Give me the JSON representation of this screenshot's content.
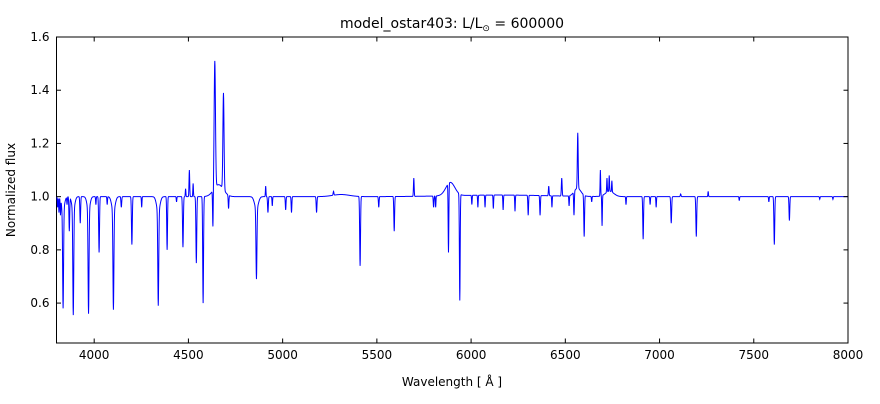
{
  "figure": {
    "title_prefix": "model_ostar403: L/L",
    "title_sub": "⊙",
    "title_suffix": " = 600000"
  },
  "chart_data": {
    "type": "line",
    "title": "model_ostar403: L/L⊙ = 600000",
    "xlabel": "Wavelength [ Å ]",
    "ylabel": "Normalized flux",
    "xlim": [
      3800,
      8000
    ],
    "ylim": [
      0.45,
      1.6
    ],
    "xticks": [
      "4000",
      "4500",
      "5000",
      "5500",
      "6000",
      "6500",
      "7000",
      "7500",
      "8000"
    ],
    "yticks": [
      "0.6",
      "0.8",
      "1.0",
      "1.2",
      "1.4",
      "1.6"
    ],
    "grid": false,
    "legend": "none",
    "line_color": "#0000ff",
    "frame_color": "#000000",
    "background": "#ffffff",
    "continuum_flux": 1.0,
    "features": [
      {
        "wl": 3806,
        "flux": 0.96,
        "sigma": 1.5
      },
      {
        "wl": 3813,
        "flux": 0.94,
        "sigma": 1.5
      },
      {
        "wl": 3821,
        "flux": 0.93,
        "sigma": 1.5
      },
      {
        "wl": 3828,
        "flux": 0.96,
        "sigma": 1.5
      },
      {
        "wl": 3835,
        "flux": 0.58,
        "sigma": 2.5
      },
      {
        "wl": 3856,
        "flux": 0.97,
        "sigma": 1.5
      },
      {
        "wl": 3868,
        "flux": 0.87,
        "sigma": 2.0
      },
      {
        "wl": 3889,
        "flux": 0.555,
        "sigma": 2.5
      },
      {
        "wl": 3926,
        "flux": 0.9,
        "sigma": 2.0
      },
      {
        "wl": 3970,
        "flux": 0.56,
        "sigma": 2.5
      },
      {
        "wl": 4009,
        "flux": 0.97,
        "sigma": 1.5
      },
      {
        "wl": 4026,
        "flux": 0.79,
        "sigma": 2.2
      },
      {
        "wl": 4069,
        "flux": 0.97,
        "sigma": 1.5
      },
      {
        "wl": 4102,
        "flux": 0.575,
        "sigma": 2.5
      },
      {
        "wl": 4144,
        "flux": 0.96,
        "sigma": 2.0
      },
      {
        "wl": 4200,
        "flux": 0.82,
        "sigma": 2.2
      },
      {
        "wl": 4252,
        "flux": 0.96,
        "sigma": 1.5
      },
      {
        "wl": 4340,
        "flux": 0.59,
        "sigma": 2.5
      },
      {
        "wl": 4387,
        "flux": 0.8,
        "sigma": 2.0
      },
      {
        "wl": 4437,
        "flux": 0.98,
        "sigma": 1.5
      },
      {
        "wl": 4471,
        "flux": 0.81,
        "sigma": 2.2
      },
      {
        "wl": 4485,
        "flux": 1.03,
        "sigma": 1.5
      },
      {
        "wl": 4505,
        "flux": 1.1,
        "sigma": 1.8
      },
      {
        "wl": 4525,
        "flux": 1.05,
        "sigma": 1.5
      },
      {
        "wl": 4542,
        "flux": 0.75,
        "sigma": 2.2
      },
      {
        "wl": 4578,
        "flux": 0.6,
        "sigma": 2.2
      },
      {
        "wl": 4630,
        "flux": 0.88,
        "sigma": 1.8
      },
      {
        "wl": 4640,
        "flux": 1.51,
        "sigma": 3.5
      },
      {
        "wl": 4686,
        "flux": 1.39,
        "sigma": 3.0
      },
      {
        "wl": 4713,
        "flux": 0.955,
        "sigma": 1.8
      },
      {
        "wl": 4861,
        "flux": 0.69,
        "sigma": 2.5
      },
      {
        "wl": 4910,
        "flux": 1.04,
        "sigma": 1.5
      },
      {
        "wl": 4922,
        "flux": 0.94,
        "sigma": 2.0
      },
      {
        "wl": 4945,
        "flux": 0.965,
        "sigma": 1.5
      },
      {
        "wl": 5016,
        "flux": 0.95,
        "sigma": 1.8
      },
      {
        "wl": 5047,
        "flux": 0.94,
        "sigma": 1.8
      },
      {
        "wl": 5180,
        "flux": 0.94,
        "sigma": 2.0
      },
      {
        "wl": 5270,
        "flux": 1.02,
        "sigma": 2.0
      },
      {
        "wl": 5411,
        "flux": 0.74,
        "sigma": 2.2
      },
      {
        "wl": 5510,
        "flux": 0.96,
        "sigma": 1.8
      },
      {
        "wl": 5592,
        "flux": 0.87,
        "sigma": 2.0
      },
      {
        "wl": 5696,
        "flux": 1.07,
        "sigma": 1.8
      },
      {
        "wl": 5801,
        "flux": 0.96,
        "sigma": 1.8
      },
      {
        "wl": 5812,
        "flux": 0.96,
        "sigma": 1.5
      },
      {
        "wl": 5880,
        "flux": 0.79,
        "sigma": 1.8
      },
      {
        "wl": 5940,
        "flux": 0.61,
        "sigma": 2.0
      },
      {
        "wl": 6004,
        "flux": 0.97,
        "sigma": 1.5
      },
      {
        "wl": 6036,
        "flux": 0.96,
        "sigma": 1.5
      },
      {
        "wl": 6074,
        "flux": 0.96,
        "sigma": 1.5
      },
      {
        "wl": 6118,
        "flux": 0.955,
        "sigma": 1.5
      },
      {
        "wl": 6170,
        "flux": 0.95,
        "sigma": 1.5
      },
      {
        "wl": 6233,
        "flux": 0.945,
        "sigma": 1.5
      },
      {
        "wl": 6303,
        "flux": 0.93,
        "sigma": 1.8
      },
      {
        "wl": 6366,
        "flux": 0.93,
        "sigma": 1.8
      },
      {
        "wl": 6412,
        "flux": 1.04,
        "sigma": 1.8
      },
      {
        "wl": 6429,
        "flux": 0.96,
        "sigma": 1.5
      },
      {
        "wl": 6481,
        "flux": 1.07,
        "sigma": 2.0
      },
      {
        "wl": 6520,
        "flux": 0.965,
        "sigma": 1.5
      },
      {
        "wl": 6546,
        "flux": 0.93,
        "sigma": 1.8
      },
      {
        "wl": 6566,
        "flux": 1.24,
        "sigma": 2.2
      },
      {
        "wl": 6600,
        "flux": 0.85,
        "sigma": 2.0
      },
      {
        "wl": 6640,
        "flux": 0.98,
        "sigma": 1.5
      },
      {
        "wl": 6686,
        "flux": 1.1,
        "sigma": 1.5
      },
      {
        "wl": 6695,
        "flux": 0.89,
        "sigma": 1.5
      },
      {
        "wl": 6721,
        "flux": 1.07,
        "sigma": 1.5
      },
      {
        "wl": 6733,
        "flux": 1.08,
        "sigma": 1.5
      },
      {
        "wl": 6747,
        "flux": 1.06,
        "sigma": 1.5
      },
      {
        "wl": 6822,
        "flux": 0.97,
        "sigma": 1.5
      },
      {
        "wl": 6913,
        "flux": 0.84,
        "sigma": 2.0
      },
      {
        "wl": 6950,
        "flux": 0.97,
        "sigma": 1.5
      },
      {
        "wl": 6982,
        "flux": 0.96,
        "sigma": 1.5
      },
      {
        "wl": 7062,
        "flux": 0.9,
        "sigma": 2.2
      },
      {
        "wl": 7112,
        "flux": 1.01,
        "sigma": 2.0
      },
      {
        "wl": 7195,
        "flux": 0.85,
        "sigma": 2.2
      },
      {
        "wl": 7258,
        "flux": 1.02,
        "sigma": 1.5
      },
      {
        "wl": 7423,
        "flux": 0.985,
        "sigma": 1.5
      },
      {
        "wl": 7580,
        "flux": 0.98,
        "sigma": 1.5
      },
      {
        "wl": 7609,
        "flux": 0.82,
        "sigma": 2.2
      },
      {
        "wl": 7689,
        "flux": 0.91,
        "sigma": 2.0
      },
      {
        "wl": 7850,
        "flux": 0.99,
        "sigma": 1.5
      },
      {
        "wl": 7920,
        "flux": 0.99,
        "sigma": 1.5
      }
    ],
    "broad_components": [
      {
        "center": 3835,
        "amp": -0.045,
        "sigma": 8
      },
      {
        "center": 3889,
        "amp": -0.05,
        "sigma": 8
      },
      {
        "center": 3970,
        "amp": -0.05,
        "sigma": 8
      },
      {
        "center": 4102,
        "amp": -0.055,
        "sigma": 9
      },
      {
        "center": 4340,
        "amp": -0.055,
        "sigma": 9
      },
      {
        "center": 4861,
        "amp": -0.045,
        "sigma": 10
      },
      {
        "center": 4660,
        "amp": 0.045,
        "sigma": 26
      },
      {
        "center": 5310,
        "amp": 0.008,
        "sigma": 45
      },
      {
        "center": 5890,
        "amp": 0.05,
        "sigma": 24
      },
      {
        "center": 6150,
        "amp": 0.006,
        "sigma": 250
      },
      {
        "center": 6565,
        "amp": 0.03,
        "sigma": 18
      },
      {
        "center": 6735,
        "amp": 0.02,
        "sigma": 22
      }
    ]
  }
}
